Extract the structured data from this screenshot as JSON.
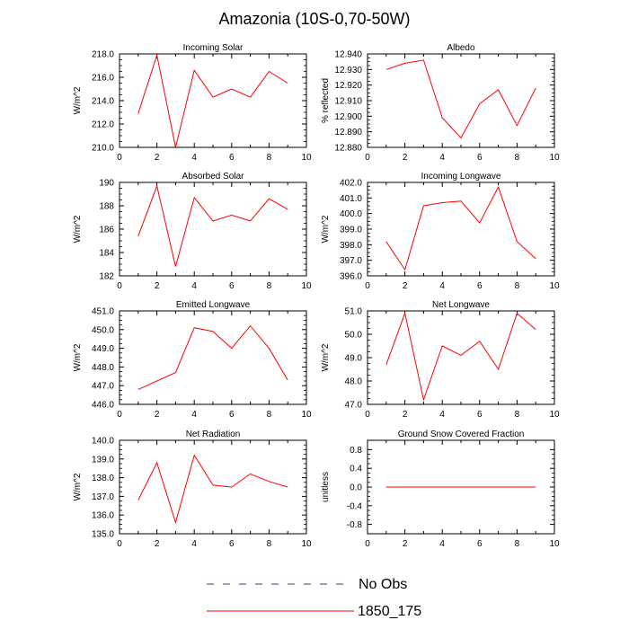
{
  "title": "Amazonia (10S-0,70-50W)",
  "legend": [
    {
      "label": "No Obs",
      "color": "#3a3a9a",
      "dashed": true
    },
    {
      "label": "1850_175",
      "color": "#ff0000",
      "dashed": false
    }
  ],
  "chart_data": [
    {
      "type": "line",
      "title": "Incoming Solar",
      "ylabel": "W/m^2",
      "xlim": [
        0,
        10
      ],
      "xticks": [
        "0",
        "2",
        "4",
        "6",
        "8",
        "10"
      ],
      "ylim": [
        210,
        218
      ],
      "yticks": [
        "210.0",
        "212.0",
        "214.0",
        "216.0",
        "218.0"
      ],
      "x": [
        1,
        2,
        3,
        4,
        5,
        6,
        7,
        8,
        9
      ],
      "series": [
        {
          "name": "1850_175",
          "values": [
            212.9,
            217.9,
            210.0,
            216.6,
            214.3,
            215.0,
            214.3,
            216.5,
            215.5
          ]
        }
      ]
    },
    {
      "type": "line",
      "title": "Albedo",
      "ylabel": "% reflected",
      "xlim": [
        0,
        10
      ],
      "xticks": [
        "0",
        "2",
        "4",
        "6",
        "8",
        "10"
      ],
      "ylim": [
        12.88,
        12.94
      ],
      "yticks": [
        "12.880",
        "12.890",
        "12.900",
        "12.910",
        "12.920",
        "12.930",
        "12.940"
      ],
      "x": [
        1,
        2,
        3,
        4,
        5,
        6,
        7,
        8,
        9
      ],
      "series": [
        {
          "name": "1850_175",
          "values": [
            12.93,
            12.934,
            12.936,
            12.899,
            12.886,
            12.908,
            12.917,
            12.894,
            12.918
          ]
        }
      ]
    },
    {
      "type": "line",
      "title": "Absorbed Solar",
      "ylabel": "W/m^2",
      "xlim": [
        0,
        10
      ],
      "xticks": [
        "0",
        "2",
        "4",
        "6",
        "8",
        "10"
      ],
      "ylim": [
        182,
        190
      ],
      "yticks": [
        "182",
        "184",
        "186",
        "188",
        "190"
      ],
      "x": [
        1,
        2,
        3,
        4,
        5,
        6,
        7,
        8,
        9
      ],
      "series": [
        {
          "name": "1850_175",
          "values": [
            185.4,
            189.7,
            182.8,
            188.7,
            186.7,
            187.2,
            186.7,
            188.6,
            187.7
          ]
        }
      ]
    },
    {
      "type": "line",
      "title": "Incoming Longwave",
      "ylabel": "W/m^2",
      "xlim": [
        0,
        10
      ],
      "xticks": [
        "0",
        "2",
        "4",
        "6",
        "8",
        "10"
      ],
      "ylim": [
        396,
        402
      ],
      "yticks": [
        "396.0",
        "397.0",
        "398.0",
        "399.0",
        "400.0",
        "401.0",
        "402.0"
      ],
      "x": [
        1,
        2,
        3,
        4,
        5,
        6,
        7,
        8,
        9
      ],
      "series": [
        {
          "name": "1850_175",
          "values": [
            398.2,
            396.4,
            400.5,
            400.7,
            400.8,
            399.4,
            401.7,
            398.2,
            397.1
          ]
        }
      ]
    },
    {
      "type": "line",
      "title": "Emitted Longwave",
      "ylabel": "W/m^2",
      "xlim": [
        0,
        10
      ],
      "xticks": [
        "0",
        "2",
        "4",
        "6",
        "8",
        "10"
      ],
      "ylim": [
        446,
        451
      ],
      "yticks": [
        "446.0",
        "447.0",
        "448.0",
        "449.0",
        "450.0",
        "451.0"
      ],
      "x": [
        1,
        3,
        4,
        5,
        6,
        7,
        8,
        9
      ],
      "series": [
        {
          "name": "1850_175",
          "values": [
            446.8,
            447.7,
            450.1,
            449.9,
            449.0,
            450.2,
            449.0,
            447.3
          ]
        }
      ]
    },
    {
      "type": "line",
      "title": "Net Longwave",
      "ylabel": "W/m^2",
      "xlim": [
        0,
        10
      ],
      "xticks": [
        "0",
        "2",
        "4",
        "6",
        "8",
        "10"
      ],
      "ylim": [
        47,
        51
      ],
      "yticks": [
        "47.0",
        "48.0",
        "49.0",
        "50.0",
        "51.0"
      ],
      "x": [
        1,
        2,
        3,
        4,
        5,
        6,
        7,
        8,
        9
      ],
      "series": [
        {
          "name": "1850_175",
          "values": [
            48.7,
            50.9,
            47.2,
            49.5,
            49.1,
            49.7,
            48.5,
            50.9,
            50.2
          ]
        }
      ]
    },
    {
      "type": "line",
      "title": "Net Radiation",
      "ylabel": "W/m^2",
      "xlim": [
        0,
        10
      ],
      "xticks": [
        "0",
        "2",
        "4",
        "6",
        "8",
        "10"
      ],
      "ylim": [
        135,
        140
      ],
      "yticks": [
        "135.0",
        "136.0",
        "137.0",
        "138.0",
        "139.0",
        "140.0"
      ],
      "x": [
        1,
        2,
        3,
        4,
        5,
        6,
        7,
        8,
        9
      ],
      "series": [
        {
          "name": "1850_175",
          "values": [
            136.8,
            138.8,
            135.6,
            139.2,
            137.6,
            137.5,
            138.2,
            137.8,
            137.5
          ]
        }
      ]
    },
    {
      "type": "line",
      "title": "Ground Snow Covered Fraction",
      "ylabel": "unitless",
      "xlim": [
        0,
        10
      ],
      "xticks": [
        "0",
        "2",
        "4",
        "6",
        "8",
        "10"
      ],
      "ylim": [
        -1,
        1
      ],
      "yticks": [
        "-0.8",
        "-0.4",
        "0.0",
        "0.4",
        "0.8"
      ],
      "ytick_values": [
        -0.8,
        -0.4,
        0.0,
        0.4,
        0.8
      ],
      "x": [
        1,
        9
      ],
      "series": [
        {
          "name": "1850_175",
          "values": [
            0.0,
            0.0
          ]
        }
      ]
    }
  ]
}
